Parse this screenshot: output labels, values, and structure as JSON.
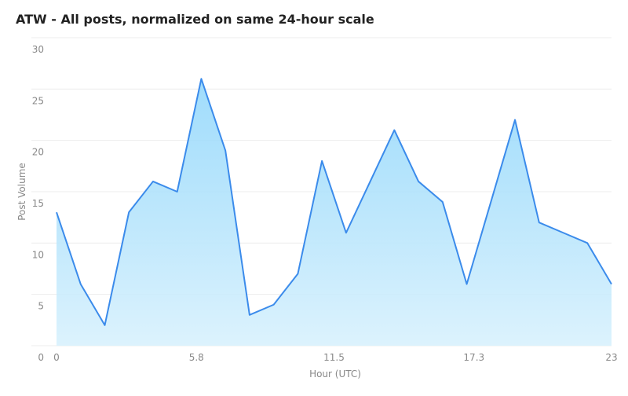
{
  "chart_data": {
    "type": "area",
    "title": "ATW - All posts, normalized on same 24-hour scale",
    "x_label": "Hour (UTC)",
    "y_label": "Post Volume",
    "x": [
      0,
      1,
      2,
      3,
      4,
      5,
      6,
      7,
      8,
      9,
      10,
      11,
      12,
      13,
      14,
      15,
      16,
      17,
      18,
      19,
      20,
      21,
      22,
      23
    ],
    "series": [
      {
        "name": "Post Volume",
        "color": "#3b8beb",
        "values": [
          13,
          6,
          2,
          13,
          16,
          15,
          26,
          19,
          3,
          4,
          7,
          18,
          11,
          16,
          21,
          16,
          14,
          6,
          14,
          22,
          12,
          11,
          10,
          6
        ]
      }
    ],
    "xlim": [
      0,
      23
    ],
    "xticks": [
      0,
      5.8,
      11.5,
      17.3,
      23
    ],
    "ylim": [
      0,
      30
    ],
    "yticks": [
      0,
      5,
      10,
      15,
      20,
      25,
      30
    ],
    "grid": true
  }
}
